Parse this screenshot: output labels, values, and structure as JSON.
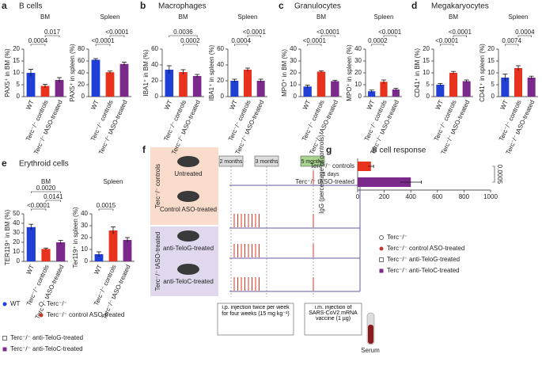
{
  "panels": [
    {
      "letter": "a",
      "title": "B cells"
    },
    {
      "letter": "b",
      "title": "Macrophages"
    },
    {
      "letter": "c",
      "title": "Granulocytes"
    },
    {
      "letter": "d",
      "title": "Megakaryocytes"
    },
    {
      "letter": "e",
      "title": "Erythroid cells"
    },
    {
      "letter": "g",
      "title": "B cell response"
    }
  ],
  "chart_data": [
    {
      "type": "bar",
      "subtitle": "BM",
      "ylabel": "PAX5⁺ in BM (%)",
      "categories": [
        "WT",
        "Terc⁻/⁻ controls",
        "Terc⁻/⁻ tASO-treated"
      ],
      "colors": [
        "#1f3fd6",
        "#e8321e",
        "#7b2a8c"
      ],
      "values": [
        10,
        4.5,
        7
      ],
      "errors": [
        1.5,
        0.7,
        1
      ],
      "ylim": [
        0,
        20
      ],
      "yticks": [
        0,
        5,
        10,
        15,
        20
      ],
      "annotations": [
        "0.0004",
        "0.017"
      ]
    },
    {
      "type": "bar",
      "subtitle": "Spleen",
      "ylabel": "PAX5⁺ in spleen (%)",
      "categories": [
        "WT",
        "Terc⁻/⁻ controls",
        "Terc⁻/⁻ tASO-treated"
      ],
      "colors": [
        "#1f3fd6",
        "#e8321e",
        "#7b2a8c"
      ],
      "values": [
        62,
        41,
        55
      ],
      "errors": [
        2,
        2,
        3
      ],
      "ylim": [
        0,
        80
      ],
      "yticks": [
        0,
        20,
        40,
        60,
        80
      ],
      "annotations": [
        "<0.0001",
        "<0.0001"
      ]
    },
    {
      "type": "bar",
      "subtitle": "BM",
      "ylabel": "IBA1⁺ in BM (%)",
      "categories": [
        "WT",
        "Terc⁻/⁻ controls",
        "Terc⁻/⁻ tASO-treated"
      ],
      "colors": [
        "#1f3fd6",
        "#e8321e",
        "#7b2a8c"
      ],
      "values": [
        34,
        31,
        26
      ],
      "errors": [
        5,
        3,
        2
      ],
      "ylim": [
        0,
        60
      ],
      "yticks": [
        0,
        20,
        40,
        60
      ],
      "annotations": [
        "0.0002",
        "0.0036"
      ]
    },
    {
      "type": "bar",
      "subtitle": "Spleen",
      "ylabel": "IBA1⁺ in spleen (%)",
      "categories": [
        "WT",
        "Terc⁻/⁻ controls",
        "Terc⁻/⁻ tASO-treated"
      ],
      "colors": [
        "#1f3fd6",
        "#e8321e",
        "#7b2a8c"
      ],
      "values": [
        20,
        34,
        20
      ],
      "errors": [
        2,
        2,
        2
      ],
      "ylim": [
        0,
        60
      ],
      "yticks": [
        0,
        20,
        40,
        60
      ],
      "annotations": [
        "0.0004",
        "<0.0001"
      ]
    },
    {
      "type": "bar",
      "subtitle": "BM",
      "ylabel": "MPO⁺ in BM (%)",
      "categories": [
        "WT",
        "Terc⁻/⁻ controls",
        "Terc⁻/⁻ tASO-treated"
      ],
      "colors": [
        "#1f3fd6",
        "#e8321e",
        "#7b2a8c"
      ],
      "values": [
        8.5,
        21,
        13
      ],
      "errors": [
        1.2,
        0.8,
        0.8
      ],
      "ylim": [
        0,
        40
      ],
      "yticks": [
        0,
        10,
        20,
        30,
        40
      ],
      "annotations": [
        "<0.0001",
        "<0.0001"
      ]
    },
    {
      "type": "bar",
      "subtitle": "Spleen",
      "ylabel": "MPO⁺ in spleen (%)",
      "categories": [
        "WT",
        "Terc⁻/⁻ controls",
        "Terc⁻/⁻ tASO-treated"
      ],
      "colors": [
        "#1f3fd6",
        "#e8321e",
        "#7b2a8c"
      ],
      "values": [
        4.5,
        12.5,
        6
      ],
      "errors": [
        1,
        1.5,
        1
      ],
      "ylim": [
        0,
        40
      ],
      "yticks": [
        0,
        10,
        20,
        30,
        40
      ],
      "annotations": [
        "0.0002",
        "<0.0001"
      ]
    },
    {
      "type": "bar",
      "subtitle": "BM",
      "ylabel": "CD41⁺ in BM (%)",
      "categories": [
        "WT",
        "Terc⁻/⁻ controls",
        "Terc⁻/⁻ tASO-treated"
      ],
      "colors": [
        "#1f3fd6",
        "#e8321e",
        "#7b2a8c"
      ],
      "values": [
        5,
        10,
        6.5
      ],
      "errors": [
        0.5,
        0.6,
        0.5
      ],
      "ylim": [
        0,
        20
      ],
      "yticks": [
        0,
        5,
        10,
        15,
        20
      ],
      "annotations": [
        "<0.0001",
        "<0.0001"
      ]
    },
    {
      "type": "bar",
      "subtitle": "Spleen",
      "ylabel": "CD41⁺ in spleen (%)",
      "categories": [
        "WT",
        "Terc⁻/⁻ controls",
        "Terc⁻/⁻ tASO-treated"
      ],
      "colors": [
        "#1f3fd6",
        "#e8321e",
        "#7b2a8c"
      ],
      "values": [
        8,
        12,
        8
      ],
      "errors": [
        1.5,
        1,
        0.6
      ],
      "ylim": [
        0,
        20
      ],
      "yticks": [
        0,
        5,
        10,
        15,
        20
      ],
      "annotations": [
        "0.0074",
        "0.0004"
      ]
    },
    {
      "type": "bar",
      "subtitle": "BM",
      "ylabel": "TER119⁺ in BM (%)",
      "categories": [
        "WT",
        "Terc⁻/⁻ controls",
        "Terc⁻/⁻ tASO-treated"
      ],
      "colors": [
        "#1f3fd6",
        "#e8321e",
        "#7b2a8c"
      ],
      "values": [
        36,
        13,
        20
      ],
      "errors": [
        3,
        1,
        2
      ],
      "ylim": [
        0,
        50
      ],
      "yticks": [
        0,
        10,
        20,
        30,
        40,
        50
      ],
      "annotations": [
        "<0.0001",
        "0.0141",
        "0.0020"
      ]
    },
    {
      "type": "bar",
      "subtitle": "Spleen",
      "ylabel": "Ter119⁺ in spleen (%)",
      "categories": [
        "WT",
        "Terc⁻/⁻ controls",
        "Terc⁻/⁻ tASO-treated"
      ],
      "colors": [
        "#1f3fd6",
        "#e8321e",
        "#7b2a8c"
      ],
      "values": [
        6,
        26,
        18
      ],
      "errors": [
        2,
        3,
        2
      ],
      "ylim": [
        0,
        40
      ],
      "yticks": [
        0,
        10,
        20,
        30,
        40
      ],
      "annotations": [
        "0.0015"
      ]
    },
    {
      "type": "barh",
      "ylabel": "IgG (percentage of controls)",
      "categories": [
        "Terc⁻/⁻ controls",
        "Terc⁻/⁻ tASO-treated"
      ],
      "colors": [
        "#e8321e",
        "#7b2a8c"
      ],
      "values": [
        100,
        400
      ],
      "errors": [
        20,
        80
      ],
      "xlim": [
        0,
        1000
      ],
      "xticks": [
        0,
        200,
        400,
        600,
        800,
        1000
      ],
      "annotations": [
        "0.0005"
      ]
    }
  ],
  "legends": {
    "left": [
      "WT",
      "Terc⁻/⁻",
      "Terc⁻/⁻ control ASO-treated",
      "Terc⁻/⁻ anti-TeloG-treated",
      "Terc⁻/⁻ anti-TeloC-treated"
    ],
    "right": [
      "Terc⁻/⁻",
      "Terc⁻/⁻ control ASO-treated",
      "Terc⁻/⁻ anti-TeloG-treated",
      "Terc⁻/⁻ anti-TeloC-treated"
    ]
  },
  "diagram": {
    "letter": "f",
    "groups": [
      "Terc⁻/⁻ controls",
      "Terc⁻/⁻ tASO-treated"
    ],
    "mice": [
      "Untreated",
      "Control ASO-treated",
      "anti-TeloG-treated",
      "anti-TeloC-treated"
    ],
    "times": [
      "2 months",
      "3 months",
      "5 months"
    ],
    "days": "21 days",
    "notes": [
      "i.p. injection twice per week for four weeks (15 mg kg⁻¹)",
      "i.m. injection of SARS-CoV2 mRNA vaccine (1 µg)"
    ],
    "serum": "Serum"
  }
}
